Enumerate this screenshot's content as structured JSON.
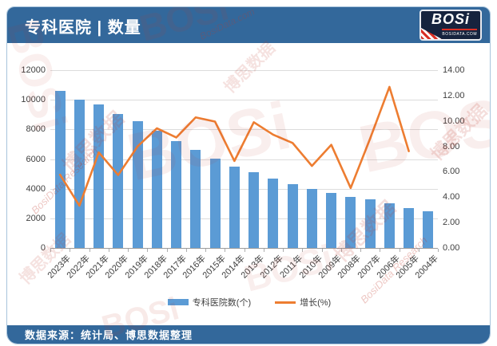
{
  "header": {
    "title": "专科医院 | 数量",
    "logo": {
      "text": "BOSi",
      "subtext": "BOSIDATA.COM"
    }
  },
  "footer": {
    "source": "数据来源：统计局、博思数据整理"
  },
  "legend": [
    {
      "label": "专科医院数(个)",
      "color": "#5B9BD5",
      "type": "bar"
    },
    {
      "label": "增长(%)",
      "color": "#ED7D31",
      "type": "line"
    }
  ],
  "watermarks": {
    "items": [
      "BOSi",
      "博思数据",
      "BosiData.com",
      "BosiData Research"
    ]
  },
  "colors": {
    "accent_blue": "#33689B",
    "bar_blue": "#5B9BD5",
    "line_orange": "#ED7D31",
    "logo_red": "#D93025"
  },
  "chart_data": {
    "type": "bar",
    "subtype": "bar+line combo",
    "title": "专科医院 | 数量",
    "categories": [
      "2023年",
      "2022年",
      "2021年",
      "2020年",
      "2019年",
      "2018年",
      "2017年",
      "2016年",
      "2015年",
      "2014年",
      "2013年",
      "2012年",
      "2011年",
      "2010年",
      "2009年",
      "2008年",
      "2007年",
      "2006年",
      "2005年",
      "2004年"
    ],
    "series": [
      {
        "name": "专科医院数(个)",
        "type": "bar",
        "axis": "left",
        "color": "#5B9BD5",
        "values": [
          10600,
          10022,
          9699,
          9021,
          8531,
          7900,
          7220,
          6642,
          6023,
          5478,
          5127,
          4665,
          4283,
          3956,
          3716,
          3437,
          3282,
          3022,
          2682,
          2492
        ]
      },
      {
        "name": "增长(%)",
        "type": "line",
        "axis": "right",
        "color": "#ED7D31",
        "values": [
          5.77,
          3.33,
          7.52,
          5.74,
          7.99,
          9.42,
          8.7,
          10.28,
          9.95,
          6.85,
          9.9,
          8.92,
          8.27,
          6.46,
          8.12,
          4.72,
          8.6,
          12.68,
          7.62,
          null
        ]
      }
    ],
    "left_axis": {
      "min": 0,
      "max": 12000,
      "step": 2000,
      "tick_labels": [
        "0",
        "2000",
        "4000",
        "6000",
        "8000",
        "10000",
        "12000"
      ]
    },
    "right_axis": {
      "min": 0,
      "max": 14,
      "step": 2,
      "tick_labels": [
        "0.00",
        "2.00",
        "4.00",
        "6.00",
        "8.00",
        "10.00",
        "12.00",
        "14.00"
      ]
    },
    "grid": "horizontal",
    "legend_position": "bottom"
  }
}
